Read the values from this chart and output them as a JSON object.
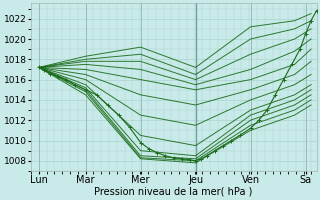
{
  "bg_color": "#c8eae8",
  "grid_color": "#b0d8d4",
  "line_color": "#1a6b1a",
  "xlabel": "Pression niveau de la mer( hPa )",
  "xlim": [
    0,
    5.2
  ],
  "ylim": [
    1007.0,
    1023.5
  ],
  "yticks": [
    1008,
    1010,
    1012,
    1014,
    1016,
    1018,
    1020,
    1022
  ],
  "day_labels": [
    "Lun",
    "Mar",
    "Mer",
    "Jeu",
    "Ven",
    "Sa"
  ],
  "day_positions": [
    0.15,
    1.0,
    2.0,
    3.0,
    4.0,
    5.0
  ],
  "day_vlines": [
    0.15,
    1.0,
    2.0,
    3.0,
    4.0,
    5.0
  ],
  "ensemble_lines": [
    {
      "x": [
        0.15,
        1.0,
        2.0,
        3.0,
        4.0,
        4.8,
        5.1
      ],
      "y": [
        1017.2,
        1018.3,
        1019.2,
        1017.2,
        1021.2,
        1021.8,
        1022.5
      ]
    },
    {
      "x": [
        0.15,
        1.0,
        2.0,
        3.0,
        4.0,
        4.8,
        5.1
      ],
      "y": [
        1017.2,
        1018.0,
        1018.5,
        1016.5,
        1020.0,
        1021.0,
        1021.8
      ]
    },
    {
      "x": [
        0.15,
        1.0,
        2.0,
        3.0,
        4.0,
        4.8,
        5.1
      ],
      "y": [
        1017.2,
        1017.8,
        1017.8,
        1016.0,
        1018.5,
        1020.0,
        1021.0
      ]
    },
    {
      "x": [
        0.15,
        1.0,
        2.0,
        3.0,
        4.0,
        4.8,
        5.1
      ],
      "y": [
        1017.2,
        1017.5,
        1017.0,
        1015.5,
        1017.0,
        1018.8,
        1020.0
      ]
    },
    {
      "x": [
        0.15,
        1.0,
        2.0,
        3.0,
        4.0,
        4.8,
        5.1
      ],
      "y": [
        1017.2,
        1017.0,
        1016.0,
        1015.0,
        1016.0,
        1017.5,
        1019.0
      ]
    },
    {
      "x": [
        0.15,
        1.0,
        2.0,
        3.0,
        4.0,
        4.8,
        5.1
      ],
      "y": [
        1017.2,
        1016.5,
        1014.5,
        1013.5,
        1015.0,
        1016.5,
        1017.8
      ]
    },
    {
      "x": [
        0.15,
        1.0,
        2.0,
        3.0,
        4.0,
        4.8,
        5.1
      ],
      "y": [
        1017.2,
        1016.0,
        1012.5,
        1011.5,
        1014.0,
        1015.5,
        1016.5
      ]
    },
    {
      "x": [
        0.15,
        1.0,
        2.0,
        3.0,
        4.0,
        4.8,
        5.1
      ],
      "y": [
        1017.2,
        1015.5,
        1010.5,
        1009.5,
        1013.0,
        1014.5,
        1015.5
      ]
    },
    {
      "x": [
        0.15,
        1.0,
        2.0,
        3.0,
        4.0,
        4.8,
        5.1
      ],
      "y": [
        1017.2,
        1015.2,
        1009.0,
        1008.5,
        1012.5,
        1014.0,
        1015.0
      ]
    },
    {
      "x": [
        0.15,
        1.0,
        2.0,
        3.0,
        4.0,
        4.8,
        5.1
      ],
      "y": [
        1017.2,
        1015.0,
        1008.5,
        1008.2,
        1012.0,
        1013.5,
        1014.5
      ]
    },
    {
      "x": [
        0.15,
        1.0,
        2.0,
        3.0,
        4.0,
        4.8,
        5.1
      ],
      "y": [
        1017.2,
        1014.8,
        1008.3,
        1008.0,
        1011.5,
        1013.0,
        1014.0
      ]
    },
    {
      "x": [
        0.15,
        1.0,
        2.0,
        3.0,
        4.0,
        4.8,
        5.1
      ],
      "y": [
        1017.2,
        1014.5,
        1008.2,
        1007.8,
        1011.0,
        1012.5,
        1013.5
      ]
    }
  ],
  "marker_line": {
    "x": [
      0.15,
      0.25,
      0.35,
      0.5,
      0.65,
      0.8,
      1.0,
      1.2,
      1.4,
      1.6,
      1.8,
      2.0,
      2.15,
      2.3,
      2.45,
      2.6,
      2.75,
      2.9,
      3.0,
      3.1,
      3.2,
      3.35,
      3.5,
      3.65,
      3.8,
      4.0,
      4.15,
      4.3,
      4.45,
      4.6,
      4.75,
      4.9,
      5.0,
      5.1,
      5.2
    ],
    "y": [
      1017.2,
      1016.9,
      1016.6,
      1016.3,
      1016.0,
      1015.5,
      1015.0,
      1014.5,
      1013.5,
      1012.5,
      1011.3,
      1009.8,
      1009.2,
      1008.8,
      1008.5,
      1008.3,
      1008.2,
      1008.1,
      1008.0,
      1008.2,
      1008.5,
      1009.0,
      1009.5,
      1010.0,
      1010.5,
      1011.2,
      1012.0,
      1013.0,
      1014.5,
      1016.0,
      1017.5,
      1019.0,
      1020.5,
      1021.8,
      1022.8
    ]
  }
}
